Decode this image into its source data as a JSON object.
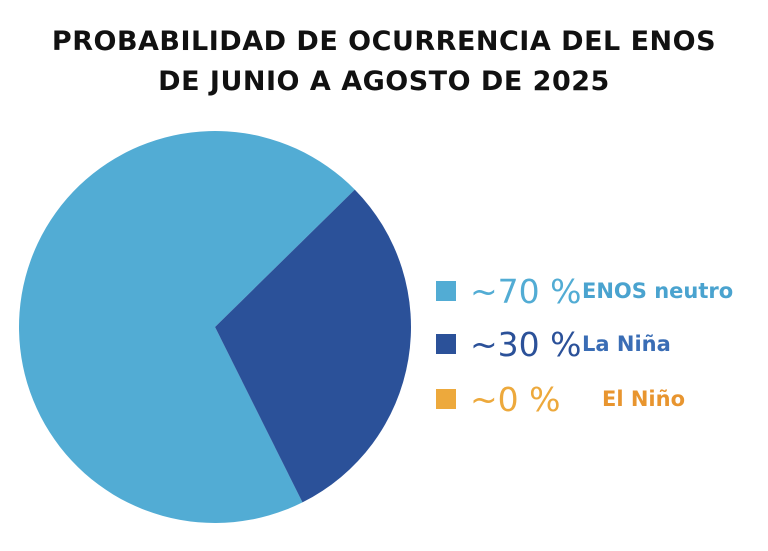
{
  "chart_data": {
    "type": "pie",
    "title": [
      "PROBABILIDAD DE OCURRENCIA DEL ENOS",
      "DE JUNIO A AGOSTO DE 2025"
    ],
    "slices": [
      {
        "name": "ENOS neutro",
        "value": 70,
        "label": "~70 %",
        "color": "#52acd4",
        "text_color": "#4aa3cf"
      },
      {
        "name": "La Niña",
        "value": 30,
        "label": "~30 %",
        "color": "#2b5199",
        "text_color": "#3a6db5"
      },
      {
        "name": "El Niño",
        "value": 0,
        "label": "~0 %",
        "color": "#eda93c",
        "text_color": "#e8952f"
      }
    ],
    "legend": "right"
  }
}
